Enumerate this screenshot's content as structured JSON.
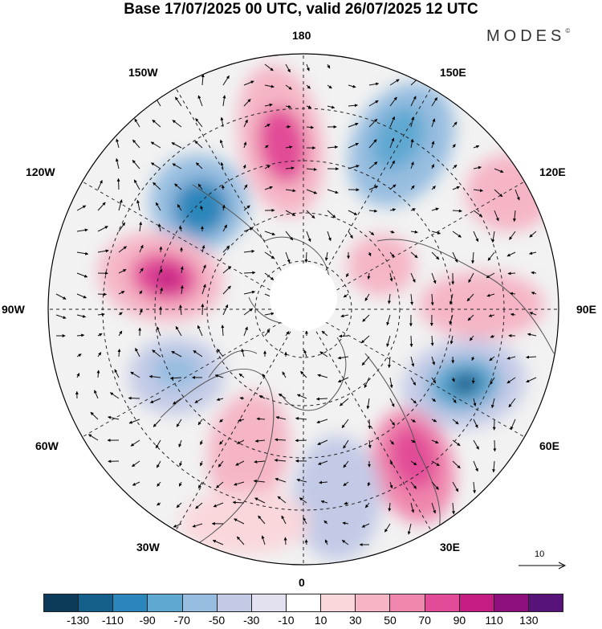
{
  "header": {
    "title": "Base 17/07/2025 00 UTC, valid 26/07/2025 12 UTC",
    "brand": "MODES",
    "brand_mark": "©"
  },
  "map": {
    "projection": "north polar stereographic",
    "field": "shaded anomaly with wind vectors",
    "longitude_labels": {
      "lon_180": "180",
      "lon_150e": "150E",
      "lon_120e": "120E",
      "lon_90e": "90E",
      "lon_60e": "60E",
      "lon_30e": "30E",
      "lon_0": "0",
      "lon_30w": "30W",
      "lon_60w": "60W",
      "lon_90w": "90W",
      "lon_120w": "120W",
      "lon_150w": "150W"
    },
    "reference_vector": "10"
  },
  "legend": {
    "colors": [
      "#0b3a5a",
      "#155f8c",
      "#2b86bb",
      "#5ea8d2",
      "#97bde0",
      "#c3cae6",
      "#e3e1f0",
      "#ffffff",
      "#f9d7db",
      "#f5b5c5",
      "#ef86ad",
      "#e24b98",
      "#c31c83",
      "#8c0f7d",
      "#571379"
    ],
    "ticks": [
      "-130",
      "-110",
      "-90",
      "-70",
      "-50",
      "-30",
      "-10",
      "10",
      "30",
      "50",
      "70",
      "90",
      "110",
      "130"
    ]
  }
}
